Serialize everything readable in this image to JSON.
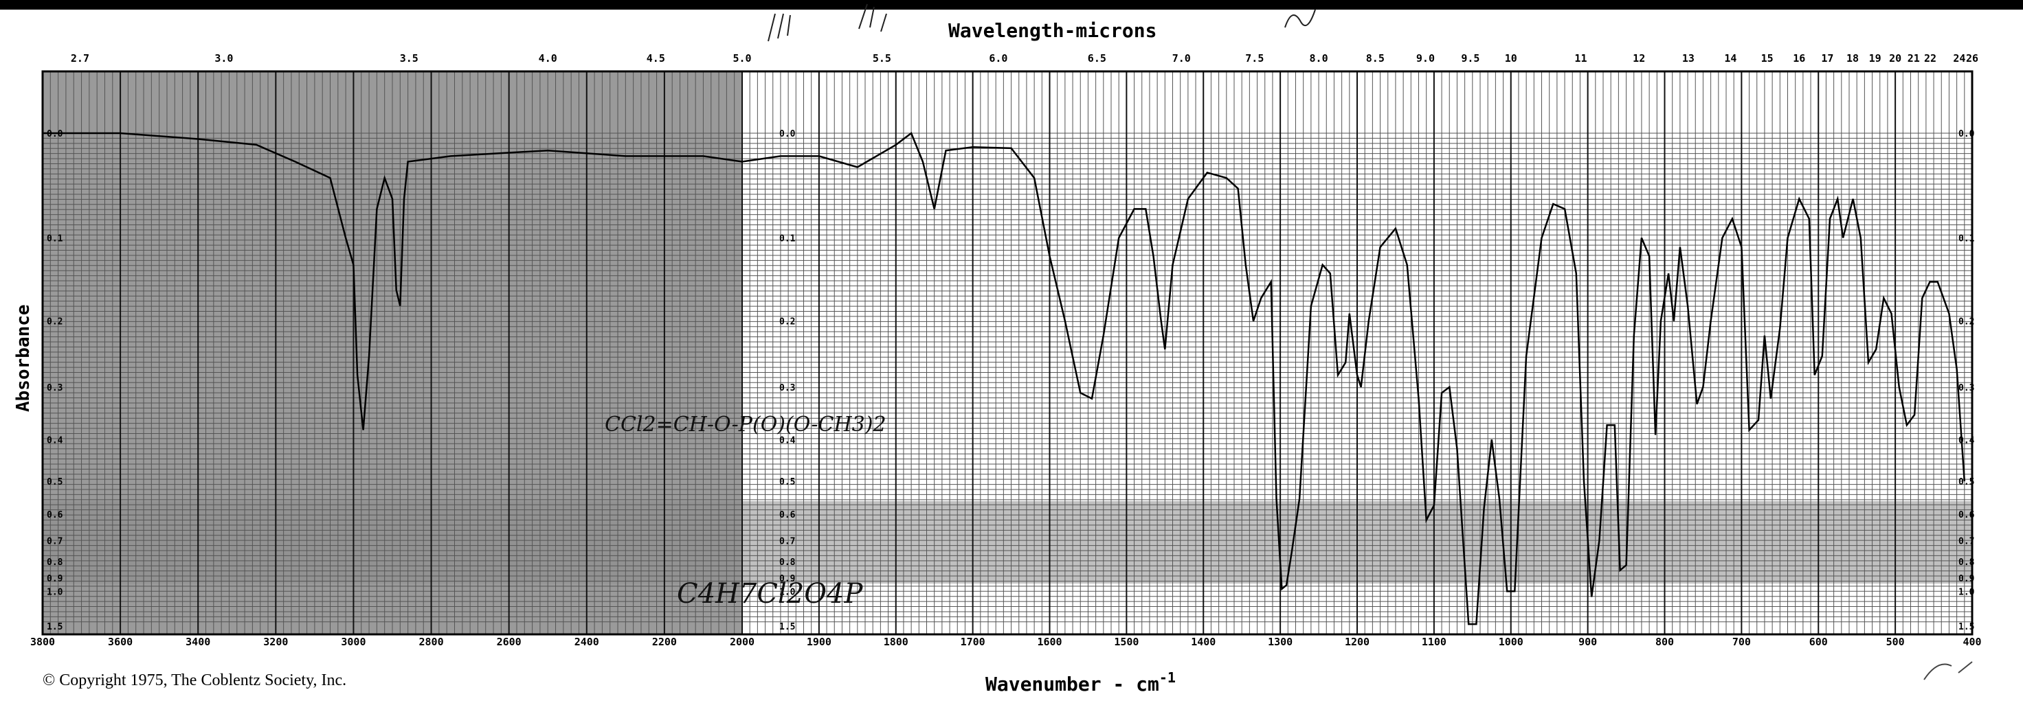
{
  "chart_data": {
    "type": "line",
    "title": "",
    "top_axis_label": "Wavelength-microns",
    "xlabel": "Wavenumber - cm-1",
    "xlabel_base": "Wavenumber - cm",
    "xlabel_sup": "-1",
    "ylabel": "Absorbance",
    "grid": true,
    "x_scale": "piecewise linear (3800–2000 and 2000–400 cm-1 segments)",
    "xlim": [
      3800,
      400
    ],
    "ylim_absorbance": [
      0.0,
      1.5
    ],
    "x_ticks": [
      "3800",
      "3600",
      "3400",
      "3200",
      "3000",
      "2800",
      "2600",
      "2400",
      "2200",
      "2000",
      "1900",
      "1800",
      "1700",
      "1600",
      "1500",
      "1400",
      "1300",
      "1200",
      "1100",
      "1000",
      "900",
      "800",
      "700",
      "600",
      "500",
      "400"
    ],
    "top_ticks": [
      "2.7",
      "3.0",
      "3.5",
      "4.0",
      "4.5",
      "5.0",
      "5.5",
      "6.0",
      "6.5",
      "7.0",
      "7.5",
      "8.0",
      "8.5",
      "9.0",
      "9.5",
      "10",
      "11",
      "12",
      "13",
      "14",
      "15",
      "16",
      "17",
      "18",
      "19",
      "20",
      "21",
      "22",
      "24",
      "26"
    ],
    "absorbance_ticks": [
      "0.0",
      "0.1",
      "0.2",
      "0.3",
      "0.4",
      "0.5",
      "0.6",
      "0.7",
      "0.8",
      "0.9",
      "1.0",
      "1.5"
    ],
    "series": [
      {
        "values": [
          [
            3800,
            0.0
          ],
          [
            3700,
            0.0
          ],
          [
            3600,
            0.0
          ],
          [
            3400,
            0.005
          ],
          [
            3250,
            0.01
          ],
          [
            3150,
            0.025
          ],
          [
            3060,
            0.04
          ],
          [
            3020,
            0.1
          ],
          [
            3000,
            0.13
          ],
          [
            2990,
            0.28
          ],
          [
            2975,
            0.38
          ],
          [
            2960,
            0.25
          ],
          [
            2940,
            0.07
          ],
          [
            2920,
            0.04
          ],
          [
            2900,
            0.06
          ],
          [
            2890,
            0.16
          ],
          [
            2880,
            0.18
          ],
          [
            2870,
            0.06
          ],
          [
            2860,
            0.025
          ],
          [
            2750,
            0.02
          ],
          [
            2500,
            0.015
          ],
          [
            2300,
            0.02
          ],
          [
            2100,
            0.02
          ],
          [
            2000,
            0.025
          ],
          [
            1950,
            0.02
          ],
          [
            1900,
            0.02
          ],
          [
            1850,
            0.03
          ],
          [
            1800,
            0.01
          ],
          [
            1780,
            0.0
          ],
          [
            1765,
            0.025
          ],
          [
            1750,
            0.07
          ],
          [
            1735,
            0.015
          ],
          [
            1700,
            0.012
          ],
          [
            1650,
            0.013
          ],
          [
            1620,
            0.04
          ],
          [
            1600,
            0.12
          ],
          [
            1580,
            0.2
          ],
          [
            1560,
            0.31
          ],
          [
            1545,
            0.32
          ],
          [
            1530,
            0.22
          ],
          [
            1510,
            0.1
          ],
          [
            1490,
            0.07
          ],
          [
            1475,
            0.07
          ],
          [
            1465,
            0.12
          ],
          [
            1455,
            0.2
          ],
          [
            1450,
            0.24
          ],
          [
            1440,
            0.13
          ],
          [
            1420,
            0.06
          ],
          [
            1395,
            0.035
          ],
          [
            1370,
            0.04
          ],
          [
            1355,
            0.05
          ],
          [
            1345,
            0.13
          ],
          [
            1335,
            0.2
          ],
          [
            1325,
            0.17
          ],
          [
            1312,
            0.15
          ],
          [
            1305,
            0.55
          ],
          [
            1298,
            0.98
          ],
          [
            1292,
            0.95
          ],
          [
            1285,
            0.75
          ],
          [
            1275,
            0.55
          ],
          [
            1260,
            0.18
          ],
          [
            1245,
            0.13
          ],
          [
            1235,
            0.14
          ],
          [
            1225,
            0.28
          ],
          [
            1215,
            0.26
          ],
          [
            1210,
            0.19
          ],
          [
            1200,
            0.28
          ],
          [
            1195,
            0.3
          ],
          [
            1185,
            0.2
          ],
          [
            1170,
            0.11
          ],
          [
            1150,
            0.09
          ],
          [
            1135,
            0.13
          ],
          [
            1120,
            0.32
          ],
          [
            1110,
            0.62
          ],
          [
            1100,
            0.57
          ],
          [
            1090,
            0.31
          ],
          [
            1080,
            0.3
          ],
          [
            1070,
            0.42
          ],
          [
            1055,
            1.45
          ],
          [
            1045,
            1.45
          ],
          [
            1035,
            0.58
          ],
          [
            1025,
            0.4
          ],
          [
            1015,
            0.55
          ],
          [
            1005,
            1.0
          ],
          [
            995,
            1.0
          ],
          [
            980,
            0.25
          ],
          [
            960,
            0.1
          ],
          [
            945,
            0.065
          ],
          [
            930,
            0.07
          ],
          [
            915,
            0.14
          ],
          [
            905,
            0.5
          ],
          [
            895,
            1.05
          ],
          [
            885,
            0.7
          ],
          [
            875,
            0.37
          ],
          [
            865,
            0.37
          ],
          [
            858,
            0.85
          ],
          [
            850,
            0.82
          ],
          [
            840,
            0.22
          ],
          [
            830,
            0.1
          ],
          [
            820,
            0.12
          ],
          [
            812,
            0.39
          ],
          [
            805,
            0.2
          ],
          [
            795,
            0.14
          ],
          [
            788,
            0.2
          ],
          [
            780,
            0.11
          ],
          [
            770,
            0.18
          ],
          [
            758,
            0.33
          ],
          [
            750,
            0.3
          ],
          [
            740,
            0.2
          ],
          [
            725,
            0.1
          ],
          [
            712,
            0.08
          ],
          [
            700,
            0.11
          ],
          [
            690,
            0.38
          ],
          [
            678,
            0.36
          ],
          [
            670,
            0.22
          ],
          [
            662,
            0.32
          ],
          [
            650,
            0.21
          ],
          [
            640,
            0.1
          ],
          [
            625,
            0.06
          ],
          [
            612,
            0.08
          ],
          [
            605,
            0.28
          ],
          [
            595,
            0.25
          ],
          [
            585,
            0.08
          ],
          [
            575,
            0.06
          ],
          [
            568,
            0.1
          ],
          [
            555,
            0.06
          ],
          [
            545,
            0.1
          ],
          [
            535,
            0.26
          ],
          [
            525,
            0.24
          ],
          [
            515,
            0.17
          ],
          [
            505,
            0.19
          ],
          [
            495,
            0.3
          ],
          [
            485,
            0.37
          ],
          [
            475,
            0.35
          ],
          [
            465,
            0.17
          ],
          [
            455,
            0.15
          ],
          [
            445,
            0.15
          ],
          [
            430,
            0.19
          ],
          [
            420,
            0.27
          ],
          [
            410,
            0.5
          ]
        ]
      }
    ]
  },
  "annotations": {
    "copyright": "© Copyright 1975, The Coblentz Society, Inc.",
    "formula_handwritten": "C4H7Cl2O4P",
    "structure_handwritten": "CCl2=CH-O-P(O)(O-CH3)2"
  }
}
